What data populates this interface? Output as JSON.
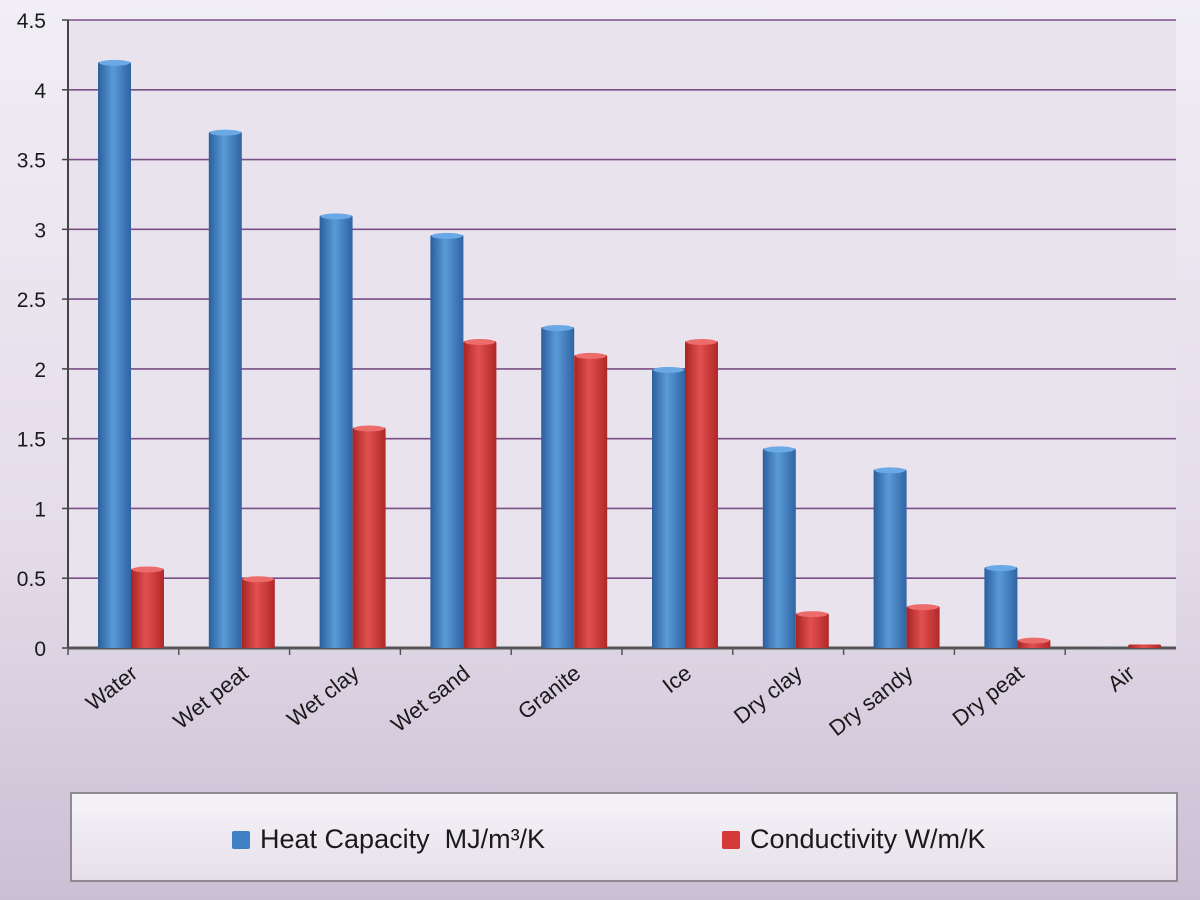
{
  "chart_data": {
    "type": "bar",
    "categories": [
      "Water",
      "Wet peat",
      "Wet clay",
      "Wet sand",
      "Granite",
      "Ice",
      "Dry clay",
      "Dry sandy",
      "Dry peat",
      "Air"
    ],
    "series": [
      {
        "name": "Heat Capacity  MJ/m³/K",
        "color": "#3f80c4",
        "values": [
          4.2,
          3.7,
          3.1,
          2.96,
          2.3,
          2.0,
          1.43,
          1.28,
          0.58,
          0.0012
        ]
      },
      {
        "name": "Conductivity W/m/K",
        "color": "#d43a3a",
        "values": [
          0.57,
          0.5,
          1.58,
          2.2,
          2.1,
          2.2,
          0.25,
          0.3,
          0.06,
          0.025
        ]
      }
    ],
    "yticks": [
      "0",
      "0.5",
      "1",
      "1.5",
      "2",
      "2.5",
      "3",
      "3.5",
      "4",
      "4.5"
    ],
    "ylim": [
      0,
      4.5
    ],
    "grid": true,
    "legend": "bottom"
  }
}
